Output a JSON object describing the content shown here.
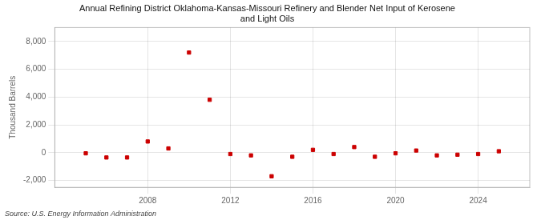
{
  "chart_data": {
    "type": "scatter",
    "title": "Annual Refining District Oklahoma-Kansas-Missouri Refinery and Blender Net Input of Kerosene\nand Light Oils",
    "ylabel": "Thousand Barrels",
    "annotations": [
      "Source: U.S. Energy Information Administration"
    ],
    "x": [
      2005,
      2006,
      2007,
      2008,
      2009,
      2010,
      2011,
      2012,
      2013,
      2014,
      2015,
      2016,
      2017,
      2018,
      2019,
      2020,
      2021,
      2022,
      2023,
      2024,
      2025
    ],
    "values": [
      -50,
      -350,
      -350,
      800,
      300,
      7200,
      3800,
      -100,
      -200,
      -1700,
      -300,
      200,
      -100,
      400,
      -300,
      -50,
      150,
      -200,
      -150,
      -100,
      100
    ],
    "color": "#cc0000",
    "marker": "square",
    "xlim": [
      2003.5,
      2026.5
    ],
    "xticks": [
      2008,
      2012,
      2016,
      2020,
      2024
    ],
    "ylim": [
      -2500,
      9000
    ],
    "yticks": [
      {
        "value": -2000,
        "label": "-2,000"
      },
      0,
      {
        "value": 2000,
        "label": "2,000"
      },
      {
        "value": 4000,
        "label": "4,000"
      },
      {
        "value": 6000,
        "label": "6,000"
      },
      {
        "value": 8000,
        "label": "8,000"
      }
    ],
    "grid": true
  }
}
